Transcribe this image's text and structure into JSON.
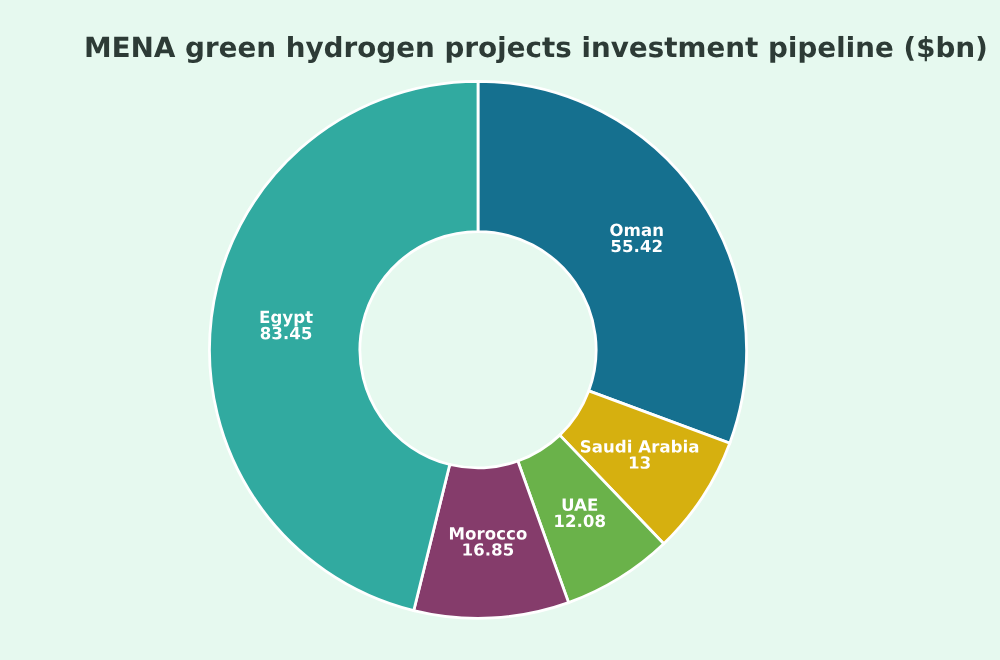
{
  "chart_data": {
    "type": "donut",
    "title": "MENA green hydrogen projects investment pipeline ($bn)",
    "categories": [
      "Oman",
      "Saudi Arabia",
      "UAE",
      "Morocco",
      "Egypt"
    ],
    "values": [
      55.42,
      13,
      12.08,
      16.85,
      83.45
    ],
    "colors": [
      "#15708f",
      "#d6b00f",
      "#6ab24a",
      "#853c6b",
      "#31aaa0"
    ],
    "data_labels": true,
    "legend": false
  }
}
